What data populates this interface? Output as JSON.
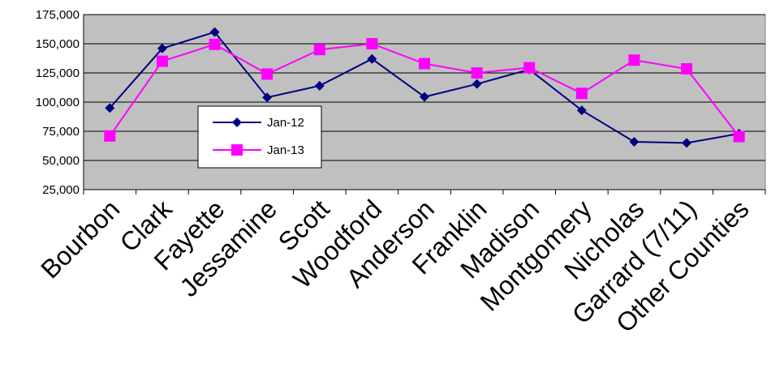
{
  "chart_data": {
    "type": "line",
    "title": "",
    "xlabel": "",
    "ylabel": "",
    "ylim": [
      25000,
      175000
    ],
    "yticks": [
      25000,
      50000,
      75000,
      100000,
      125000,
      150000,
      175000
    ],
    "ytick_labels": [
      "25,000",
      "50,000",
      "75,000",
      "100,000",
      "125,000",
      "150,000",
      "175,000"
    ],
    "categories": [
      "Bourbon",
      "Clark",
      "Fayette",
      "Jessamine",
      "Scott",
      "Woodford",
      "Anderson",
      "Franklin",
      "Madison",
      "Montgomery",
      "Nicholas",
      "Garrard (7/11)",
      "Other Counties"
    ],
    "grid": true,
    "plot_background": "#c0c0c0",
    "legend_position": "left-middle, inside plot",
    "series": [
      {
        "name": "Jan-12",
        "color": "#000080",
        "marker": "diamond",
        "values": [
          95000,
          146000,
          160000,
          104000,
          114000,
          137000,
          104500,
          115500,
          128000,
          93000,
          66000,
          65000,
          73000
        ]
      },
      {
        "name": "Jan-13",
        "color": "#ff00ff",
        "marker": "square",
        "values": [
          71000,
          135000,
          149500,
          124000,
          145000,
          150000,
          133000,
          125000,
          129500,
          107500,
          136000,
          128500,
          70500
        ]
      }
    ]
  }
}
